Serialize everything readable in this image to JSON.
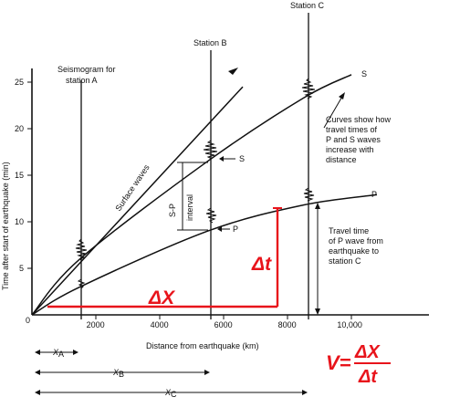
{
  "chart_data": {
    "type": "line",
    "xlabel": "Distance from earthquake (km)",
    "ylabel": "Time after start of earthquake (min)",
    "xlim": [
      0,
      12500
    ],
    "ylim": [
      0,
      28
    ],
    "x_ticks": [
      "2000",
      "4000",
      "6000",
      "8000",
      "10,000"
    ],
    "y_ticks": [
      "5",
      "10",
      "15",
      "20",
      "25"
    ],
    "series": [
      {
        "name": "S",
        "x": [
          0,
          1500,
          5500,
          8500,
          10000
        ],
        "y": [
          0,
          6.0,
          16.5,
          23.3,
          25.8
        ]
      },
      {
        "name": "P",
        "x": [
          0,
          1500,
          5500,
          8500,
          10800
        ],
        "y": [
          0,
          3.0,
          9.0,
          11.8,
          12.9
        ]
      },
      {
        "name": "Surface waves",
        "x": [
          0,
          6600
        ],
        "y": [
          0,
          24.5
        ]
      }
    ]
  },
  "stations": {
    "a_label_line1": "Seismogram for",
    "a_label_line2": "station A",
    "b_label": "Station B",
    "c_label": "Station C"
  },
  "annotations": {
    "surface_waves": "Surface waves",
    "s_marker": "S",
    "p_marker": "P",
    "sp_line1": "S-P",
    "sp_line2": "interval",
    "curves_note": [
      "Curves show how",
      "travel times of",
      "P and S waves",
      "increase with",
      "distance"
    ],
    "travel_note": [
      "Travel time",
      "of P wave from",
      "earthquake to",
      "station C"
    ],
    "zero": "0",
    "xa": "X",
    "xa_sub": "A",
    "xb": "X",
    "xb_sub": "B",
    "xc": "X",
    "xc_sub": "C"
  },
  "overlay": {
    "delta_x": "ΔX",
    "delta_t": "Δt",
    "formula_left": "V=",
    "formula_num": "ΔX",
    "formula_den": "Δt",
    "color": "#e8141b"
  }
}
